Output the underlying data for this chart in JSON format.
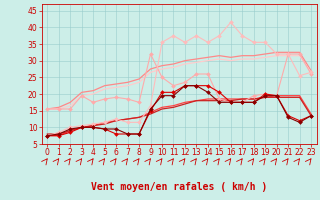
{
  "background_color": "#cceee8",
  "grid_color": "#99cccc",
  "xlabel": "Vent moyen/en rafales ( km/h )",
  "xlabel_color": "#cc0000",
  "xlabel_fontsize": 7,
  "yticks": [
    5,
    10,
    15,
    20,
    25,
    30,
    35,
    40,
    45
  ],
  "ytick_labels": [
    "5",
    "10",
    "15",
    "20",
    "25",
    "30",
    "35",
    "40",
    "45"
  ],
  "xticks": [
    0,
    1,
    2,
    3,
    4,
    5,
    6,
    7,
    8,
    9,
    10,
    11,
    12,
    13,
    14,
    15,
    16,
    17,
    18,
    19,
    20,
    21,
    22,
    23
  ],
  "ylim": [
    5,
    47
  ],
  "xlim": [
    -0.5,
    23.5
  ],
  "tick_color": "#cc0000",
  "tick_fontsize": 5.5,
  "series": [
    {
      "x": [
        0,
        1,
        2,
        3,
        4,
        5,
        6,
        7,
        8,
        9,
        10,
        11,
        12,
        13,
        14,
        15,
        16,
        17,
        18,
        19,
        20,
        21,
        22,
        23
      ],
      "y": [
        15.5,
        15.5,
        15.5,
        19.5,
        17.5,
        18.5,
        19.0,
        18.5,
        17.5,
        32.0,
        25.0,
        22.5,
        23.5,
        26.0,
        26.0,
        18.5,
        17.5,
        17.5,
        19.5,
        20.0,
        19.5,
        32.0,
        32.0,
        26.0
      ],
      "color": "#ffaaaa",
      "linewidth": 0.8,
      "marker": "D",
      "markersize": 2.0,
      "zorder": 3
    },
    {
      "x": [
        0,
        1,
        2,
        3,
        4,
        5,
        6,
        7,
        8,
        9,
        10,
        11,
        12,
        13,
        14,
        15,
        16,
        17,
        18,
        19,
        20,
        21,
        22,
        23
      ],
      "y": [
        7.5,
        8.5,
        10.0,
        10.5,
        11.0,
        11.5,
        12.5,
        11.5,
        11.5,
        16.5,
        35.5,
        37.5,
        35.5,
        37.5,
        35.5,
        37.5,
        41.5,
        37.5,
        35.5,
        35.5,
        32.0,
        32.0,
        25.5,
        26.5
      ],
      "color": "#ffbbbb",
      "linewidth": 0.8,
      "marker": "D",
      "markersize": 2.0,
      "zorder": 3
    },
    {
      "x": [
        0,
        1,
        2,
        3,
        4,
        5,
        6,
        7,
        8,
        9,
        10,
        11,
        12,
        13,
        14,
        15,
        16,
        17,
        18,
        19,
        20,
        21,
        22,
        23
      ],
      "y": [
        15.5,
        16.0,
        17.5,
        20.5,
        21.0,
        22.5,
        23.0,
        23.5,
        24.5,
        27.5,
        28.5,
        29.0,
        30.0,
        30.5,
        31.0,
        31.5,
        31.0,
        31.5,
        31.5,
        32.0,
        32.5,
        32.5,
        32.5,
        27.0
      ],
      "color": "#ff8888",
      "linewidth": 0.9,
      "marker": null,
      "markersize": 0,
      "zorder": 2
    },
    {
      "x": [
        0,
        1,
        2,
        3,
        4,
        5,
        6,
        7,
        8,
        9,
        10,
        11,
        12,
        13,
        14,
        15,
        16,
        17,
        18,
        19,
        20,
        21,
        22,
        23
      ],
      "y": [
        15.5,
        15.5,
        16.5,
        19.5,
        20.0,
        21.5,
        22.0,
        22.5,
        23.5,
        26.5,
        27.5,
        28.0,
        29.0,
        29.5,
        30.0,
        30.5,
        30.0,
        30.5,
        30.5,
        31.0,
        31.5,
        31.5,
        31.5,
        26.5
      ],
      "color": "#ffcccc",
      "linewidth": 0.9,
      "marker": null,
      "markersize": 0,
      "zorder": 2
    },
    {
      "x": [
        0,
        1,
        2,
        3,
        4,
        5,
        6,
        7,
        8,
        9,
        10,
        11,
        12,
        13,
        14,
        15,
        16,
        17,
        18,
        19,
        20,
        21,
        22,
        23
      ],
      "y": [
        7.5,
        7.5,
        9.0,
        10.0,
        10.5,
        11.5,
        12.0,
        12.5,
        13.0,
        14.5,
        16.0,
        16.5,
        17.5,
        18.0,
        18.5,
        18.5,
        18.5,
        18.5,
        18.5,
        19.0,
        19.5,
        19.5,
        19.5,
        14.0
      ],
      "color": "#ff4444",
      "linewidth": 0.9,
      "marker": null,
      "markersize": 0,
      "zorder": 2
    },
    {
      "x": [
        0,
        1,
        2,
        3,
        4,
        5,
        6,
        7,
        8,
        9,
        10,
        11,
        12,
        13,
        14,
        15,
        16,
        17,
        18,
        19,
        20,
        21,
        22,
        23
      ],
      "y": [
        8.0,
        8.0,
        9.0,
        10.0,
        10.5,
        11.0,
        12.0,
        12.5,
        13.0,
        14.0,
        15.5,
        16.0,
        17.0,
        18.0,
        18.0,
        18.0,
        18.0,
        18.5,
        18.5,
        19.0,
        19.0,
        19.0,
        19.0,
        13.5
      ],
      "color": "#cc2222",
      "linewidth": 0.9,
      "marker": null,
      "markersize": 0,
      "zorder": 2
    },
    {
      "x": [
        0,
        1,
        2,
        3,
        4,
        5,
        6,
        7,
        8,
        9,
        10,
        11,
        12,
        13,
        14,
        15,
        16,
        17,
        18,
        19,
        20,
        21,
        22,
        23
      ],
      "y": [
        7.5,
        7.5,
        8.5,
        10.0,
        10.0,
        9.5,
        8.0,
        8.0,
        8.0,
        15.0,
        20.5,
        20.5,
        22.5,
        22.5,
        22.5,
        20.5,
        17.5,
        17.5,
        17.5,
        20.0,
        19.5,
        13.5,
        12.0,
        13.5
      ],
      "color": "#dd0000",
      "linewidth": 0.8,
      "marker": "D",
      "markersize": 2.0,
      "zorder": 4
    },
    {
      "x": [
        0,
        1,
        2,
        3,
        4,
        5,
        6,
        7,
        8,
        9,
        10,
        11,
        12,
        13,
        14,
        15,
        16,
        17,
        18,
        19,
        20,
        21,
        22,
        23
      ],
      "y": [
        7.5,
        8.0,
        9.5,
        10.0,
        10.0,
        9.5,
        9.5,
        8.0,
        8.0,
        15.5,
        19.5,
        19.5,
        22.5,
        22.5,
        20.5,
        17.5,
        17.5,
        17.5,
        17.5,
        19.5,
        19.5,
        13.0,
        11.5,
        13.5
      ],
      "color": "#880000",
      "linewidth": 0.8,
      "marker": "D",
      "markersize": 2.0,
      "zorder": 4
    }
  ],
  "arrow_color": "#cc0000",
  "spine_color": "#cc0000"
}
